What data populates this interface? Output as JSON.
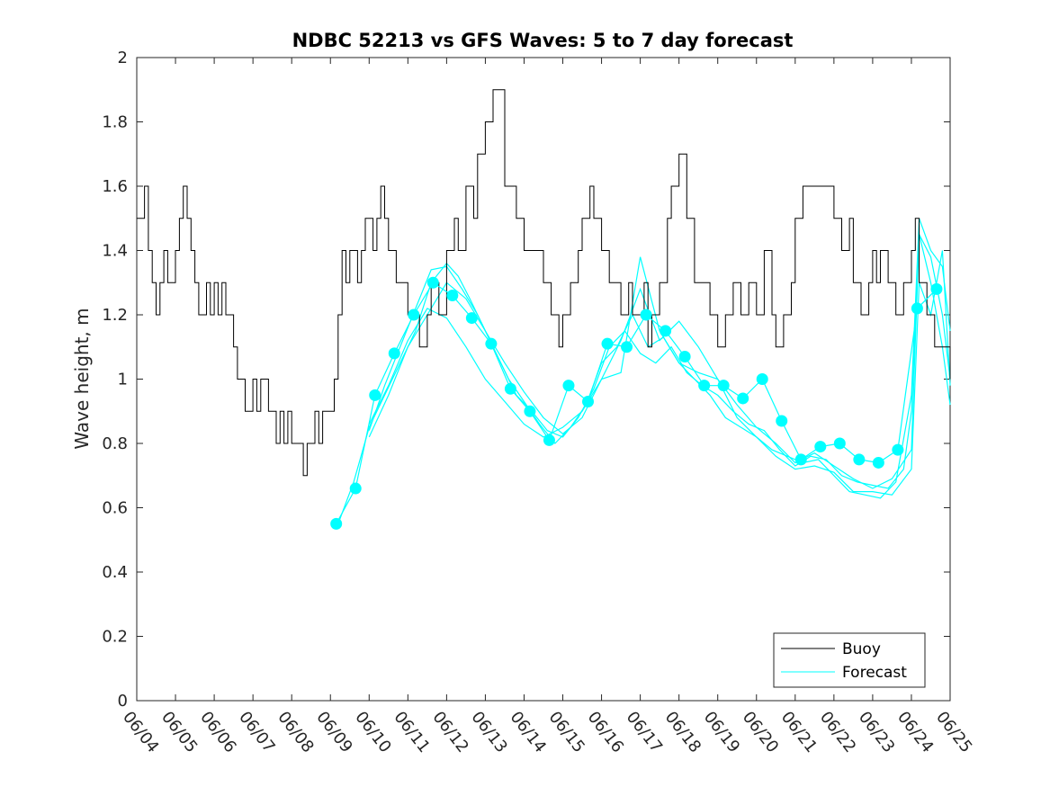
{
  "chart_data": {
    "type": "line",
    "title": "NDBC 52213 vs GFS Waves: 5 to 7 day forecast",
    "xlabel": "",
    "ylabel": "Wave height, m",
    "ylim": [
      0,
      2
    ],
    "yticks": [
      "0",
      "0.2",
      "0.4",
      "0.6",
      "0.8",
      "1",
      "1.2",
      "1.4",
      "1.6",
      "1.8",
      "2"
    ],
    "xlim_days": [
      0,
      21
    ],
    "xtick_labels": [
      "06/04",
      "06/05",
      "06/06",
      "06/07",
      "06/08",
      "06/09",
      "06/10",
      "06/11",
      "06/12",
      "06/13",
      "06/14",
      "06/15",
      "06/16",
      "06/17",
      "06/18",
      "06/19",
      "06/20",
      "06/21",
      "06/22",
      "06/23",
      "06/24",
      "06/25"
    ],
    "grid": false,
    "legend_position": "bottom-right",
    "colors": {
      "buoy": "#000000",
      "forecast": "#00ffff"
    },
    "series": [
      {
        "name": "Buoy",
        "x": [
          0.0,
          0.2,
          0.3,
          0.4,
          0.5,
          0.6,
          0.7,
          0.8,
          1.0,
          1.1,
          1.2,
          1.3,
          1.4,
          1.5,
          1.6,
          1.8,
          1.9,
          2.0,
          2.1,
          2.2,
          2.3,
          2.5,
          2.6,
          2.7,
          2.8,
          3.0,
          3.1,
          3.2,
          3.4,
          3.5,
          3.6,
          3.7,
          3.8,
          3.9,
          4.0,
          4.1,
          4.2,
          4.3,
          4.4,
          4.6,
          4.7,
          4.8,
          5.0,
          5.1,
          5.2,
          5.3,
          5.4,
          5.5,
          5.6,
          5.7,
          5.8,
          5.9,
          6.0,
          6.1,
          6.2,
          6.3,
          6.4,
          6.5,
          6.7,
          6.9,
          7.0,
          7.1,
          7.2,
          7.3,
          7.4,
          7.5,
          7.6,
          7.8,
          8.0,
          8.2,
          8.3,
          8.5,
          8.7,
          8.8,
          9.0,
          9.2,
          9.5,
          9.8,
          10.0,
          10.3,
          10.5,
          10.7,
          10.9,
          11.0,
          11.2,
          11.4,
          11.5,
          11.6,
          11.7,
          11.8,
          12.0,
          12.2,
          12.3,
          12.5,
          12.7,
          12.8,
          13.0,
          13.1,
          13.2,
          13.3,
          13.5,
          13.7,
          13.8,
          14.0,
          14.2,
          14.4,
          14.5,
          14.6,
          14.8,
          14.9,
          15.0,
          15.2,
          15.4,
          15.6,
          15.8,
          16.0,
          16.2,
          16.4,
          16.5,
          16.7,
          16.9,
          17.0,
          17.2,
          17.5,
          17.8,
          18.0,
          18.2,
          18.4,
          18.5,
          18.7,
          18.9,
          19.0,
          19.1,
          19.2,
          19.4,
          19.6,
          19.8,
          20.0,
          20.1,
          20.2,
          20.4,
          20.6,
          20.8,
          21.0
        ],
        "values": [
          1.5,
          1.6,
          1.4,
          1.3,
          1.2,
          1.3,
          1.4,
          1.3,
          1.4,
          1.5,
          1.6,
          1.5,
          1.4,
          1.3,
          1.2,
          1.3,
          1.2,
          1.3,
          1.2,
          1.3,
          1.2,
          1.1,
          1.0,
          1.0,
          0.9,
          1.0,
          0.9,
          1.0,
          0.9,
          0.9,
          0.8,
          0.9,
          0.8,
          0.9,
          0.8,
          0.8,
          0.8,
          0.7,
          0.8,
          0.9,
          0.8,
          0.9,
          0.9,
          1.0,
          1.2,
          1.4,
          1.3,
          1.4,
          1.4,
          1.3,
          1.4,
          1.5,
          1.5,
          1.4,
          1.5,
          1.6,
          1.5,
          1.4,
          1.3,
          1.3,
          1.2,
          1.2,
          1.2,
          1.1,
          1.1,
          1.2,
          1.3,
          1.2,
          1.4,
          1.5,
          1.4,
          1.6,
          1.5,
          1.7,
          1.8,
          1.9,
          1.6,
          1.5,
          1.4,
          1.4,
          1.3,
          1.2,
          1.1,
          1.2,
          1.3,
          1.4,
          1.5,
          1.5,
          1.6,
          1.5,
          1.4,
          1.3,
          1.3,
          1.2,
          1.3,
          1.2,
          1.2,
          1.3,
          1.1,
          1.2,
          1.3,
          1.5,
          1.6,
          1.7,
          1.5,
          1.3,
          1.3,
          1.3,
          1.2,
          1.2,
          1.1,
          1.2,
          1.3,
          1.2,
          1.3,
          1.2,
          1.4,
          1.2,
          1.1,
          1.2,
          1.3,
          1.5,
          1.6,
          1.6,
          1.6,
          1.5,
          1.4,
          1.5,
          1.3,
          1.2,
          1.3,
          1.4,
          1.3,
          1.4,
          1.3,
          1.2,
          1.3,
          1.4,
          1.5,
          1.3,
          1.2,
          1.1,
          1.1,
          1.0
        ]
      },
      {
        "name": "Forecast",
        "x": [
          5.15,
          5.65,
          6.15,
          6.65,
          7.15,
          7.65,
          8.15,
          8.65,
          9.15,
          9.65,
          10.15,
          10.65,
          11.15,
          11.65,
          12.15,
          12.65,
          13.15,
          13.65,
          14.15,
          14.65,
          15.15,
          15.65,
          16.15,
          16.65,
          17.15,
          17.65,
          18.15,
          18.65,
          19.15,
          19.65,
          20.15,
          20.65
        ],
        "values": [
          0.55,
          0.66,
          0.95,
          1.08,
          1.2,
          1.3,
          1.26,
          1.19,
          1.11,
          0.97,
          0.9,
          0.81,
          0.98,
          0.93,
          1.11,
          1.1,
          1.2,
          1.15,
          1.07,
          0.98,
          0.98,
          0.94,
          1.0,
          0.87,
          0.75,
          0.79,
          0.8,
          0.75,
          0.74,
          0.78,
          1.22,
          1.28
        ]
      }
    ],
    "forecast_runs": [
      {
        "x": [
          5.2,
          5.6,
          6.0,
          6.4,
          6.8,
          7.2,
          7.6,
          8.0,
          8.3,
          8.6,
          9.0,
          9.4,
          9.8,
          10.2,
          10.6,
          11.0,
          11.4,
          11.8,
          12.2,
          12.6,
          13.0,
          13.4,
          13.8,
          14.2,
          14.6,
          15.0,
          15.4,
          15.8,
          16.2,
          16.6,
          17.0,
          17.4,
          17.8,
          18.2,
          18.6,
          19.0,
          19.4,
          19.8,
          20.0,
          20.2,
          20.5,
          20.8,
          21.0
        ],
        "values": [
          0.55,
          0.68,
          0.85,
          0.95,
          1.05,
          1.15,
          1.3,
          1.36,
          1.32,
          1.25,
          1.15,
          1.05,
          0.95,
          0.9,
          0.84,
          0.82,
          0.88,
          0.97,
          1.1,
          1.15,
          1.08,
          1.05,
          1.1,
          1.02,
          0.98,
          0.95,
          0.9,
          0.86,
          0.84,
          0.78,
          0.73,
          0.76,
          0.75,
          0.7,
          0.68,
          0.67,
          0.66,
          0.72,
          0.9,
          1.45,
          1.38,
          1.2,
          1.0
        ]
      },
      {
        "x": [
          6.0,
          6.4,
          6.8,
          7.2,
          7.6,
          8.0,
          8.4,
          8.8,
          9.2,
          9.6,
          10.0,
          10.4,
          10.8,
          11.2,
          11.6,
          12.0,
          12.4,
          12.8,
          13.2,
          13.6,
          14.0,
          14.4,
          14.8,
          15.2,
          15.6,
          16.0,
          16.4,
          16.8,
          17.2,
          17.6,
          18.0,
          18.4,
          18.8,
          19.2,
          19.6,
          20.0,
          20.2,
          20.5,
          20.8,
          21.0
        ],
        "values": [
          0.84,
          0.98,
          1.1,
          1.22,
          1.34,
          1.35,
          1.28,
          1.2,
          1.1,
          1.0,
          0.93,
          0.86,
          0.8,
          0.85,
          0.92,
          1.05,
          1.1,
          1.2,
          1.1,
          1.13,
          1.05,
          1.0,
          0.95,
          0.88,
          0.85,
          0.82,
          0.78,
          0.76,
          0.74,
          0.75,
          0.7,
          0.65,
          0.64,
          0.63,
          0.68,
          0.95,
          1.5,
          1.4,
          1.35,
          1.15
        ]
      },
      {
        "x": [
          6.0,
          6.5,
          7.0,
          7.5,
          8.0,
          8.5,
          9.0,
          9.5,
          10.0,
          10.5,
          11.0,
          11.5,
          12.0,
          12.5,
          13.0,
          13.5,
          14.0,
          14.5,
          15.0,
          15.5,
          16.0,
          16.5,
          17.0,
          17.5,
          18.0,
          18.5,
          19.0,
          19.5,
          20.0,
          20.2,
          20.5,
          20.8,
          21.0
        ],
        "values": [
          0.82,
          0.95,
          1.1,
          1.2,
          1.3,
          1.25,
          1.15,
          1.05,
          0.96,
          0.88,
          0.83,
          0.88,
          1.0,
          1.12,
          1.28,
          1.12,
          1.18,
          1.1,
          1.0,
          0.92,
          0.85,
          0.8,
          0.74,
          0.77,
          0.73,
          0.69,
          0.66,
          0.69,
          0.78,
          1.45,
          1.3,
          1.1,
          0.92
        ]
      },
      {
        "x": [
          6.0,
          6.5,
          7.0,
          7.5,
          8.0,
          8.5,
          9.0,
          9.5,
          10.0,
          10.5,
          11.0,
          11.5,
          12.0,
          12.5,
          13.0,
          13.5,
          14.0,
          14.5,
          15.0,
          15.5,
          16.0,
          16.5,
          17.0,
          17.5,
          18.0,
          18.5,
          19.0,
          19.5,
          20.0,
          20.2,
          20.5,
          20.8,
          21.0
        ],
        "values": [
          0.86,
          0.98,
          1.12,
          1.22,
          1.19,
          1.1,
          1.0,
          0.93,
          0.86,
          0.82,
          0.85,
          0.9,
          1.0,
          1.02,
          1.38,
          1.15,
          1.05,
          1.02,
          1.0,
          0.88,
          0.82,
          0.76,
          0.72,
          0.73,
          0.71,
          0.65,
          0.65,
          0.64,
          0.72,
          1.3,
          1.2,
          1.4,
          0.98
        ]
      }
    ]
  },
  "legend": {
    "buoy_label": "Buoy",
    "forecast_label": "Forecast"
  }
}
